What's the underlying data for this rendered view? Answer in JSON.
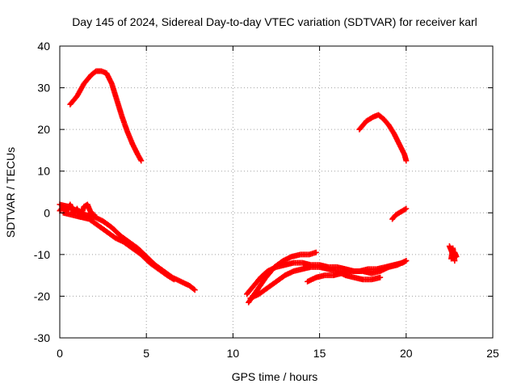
{
  "chart_data": {
    "type": "scatter",
    "title": "Day 145 of 2024, Sidereal Day-to-day VTEC variation (SDTVAR) for receiver karl",
    "xlabel": "GPS time / hours",
    "ylabel": "SDTVAR / TECUs",
    "xlim": [
      0,
      25
    ],
    "ylim": [
      -30,
      40
    ],
    "xticks": [
      0,
      5,
      10,
      15,
      20,
      25
    ],
    "yticks": [
      -30,
      -20,
      -10,
      0,
      10,
      20,
      30,
      40
    ],
    "xtick_labels": [
      "0",
      "5",
      "10",
      "15",
      "20",
      "25"
    ],
    "ytick_labels": [
      "-30",
      "-20",
      "-10",
      "0",
      "10",
      "20",
      "30",
      "40"
    ],
    "grid": true,
    "legend": "none",
    "marker": "plus",
    "color": "#ff0000",
    "series": [
      {
        "name": "arc-1",
        "x": [
          0.6,
          1.0,
          1.4,
          1.8,
          2.1,
          2.4,
          2.7,
          3.0,
          3.3,
          3.6,
          3.9,
          4.2,
          4.5,
          4.7
        ],
        "y": [
          26,
          28,
          31,
          33,
          34,
          34,
          33.5,
          31,
          27,
          23,
          19.5,
          16.5,
          14,
          12.5
        ]
      },
      {
        "name": "arc-2",
        "x": [
          17.3,
          17.7,
          18.1,
          18.4,
          18.7,
          19.0,
          19.3,
          19.6,
          19.9,
          20.0
        ],
        "y": [
          20,
          22,
          23,
          23.5,
          22.5,
          21,
          19,
          16.5,
          14,
          12.5
        ]
      },
      {
        "name": "arc-3",
        "x": [
          0.0,
          0.2,
          0.4,
          0.6,
          0.8,
          1.0,
          1.2,
          1.4,
          1.6,
          1.8,
          2.0
        ],
        "y": [
          0.5,
          1.5,
          0.5,
          2.0,
          0.0,
          1.0,
          -1.0,
          1.5,
          2.0,
          0.0,
          -0.5
        ]
      },
      {
        "name": "arc-4",
        "x": [
          0.0,
          0.5,
          1.0,
          1.5,
          2.0,
          2.5,
          3.0,
          3.5,
          4.0,
          4.5,
          5.0,
          5.5,
          6.0,
          6.5,
          7.0,
          7.5,
          7.8
        ],
        "y": [
          2.0,
          1.5,
          0.5,
          -0.5,
          -1.0,
          -2.0,
          -3.5,
          -5.5,
          -7.0,
          -8.5,
          -10.5,
          -12.5,
          -14.0,
          -15.5,
          -16.5,
          -17.5,
          -18.5
        ]
      },
      {
        "name": "arc-5",
        "x": [
          0.2,
          0.7,
          1.2,
          1.7,
          2.2,
          2.7,
          3.2,
          3.7,
          4.2,
          4.7,
          5.2,
          5.7,
          6.2,
          6.6
        ],
        "y": [
          0.0,
          -0.5,
          -1.0,
          -1.5,
          -3.0,
          -4.5,
          -6.0,
          -7.0,
          -8.5,
          -10.0,
          -12.0,
          -13.5,
          -15.0,
          -16.0
        ]
      },
      {
        "name": "arc-6",
        "x": [
          10.8,
          11.2,
          11.6,
          12.0,
          12.5,
          13.0,
          13.5,
          14.0,
          14.5,
          15.0,
          15.5,
          16.0,
          16.5,
          17.0,
          17.5,
          18.0,
          18.5,
          19.0,
          19.5,
          20.0
        ],
        "y": [
          -19.5,
          -17.5,
          -15.5,
          -14.0,
          -13.0,
          -12.5,
          -12.0,
          -12.0,
          -12.5,
          -12.5,
          -13.0,
          -13.0,
          -13.5,
          -14.0,
          -14.0,
          -14.5,
          -14.0,
          -13.0,
          -12.5,
          -11.5
        ]
      },
      {
        "name": "arc-7",
        "x": [
          10.9,
          11.4,
          11.9,
          12.4,
          12.9,
          13.4,
          13.9,
          14.4,
          14.8
        ],
        "y": [
          -21.5,
          -18.5,
          -15.5,
          -13.0,
          -11.5,
          -10.5,
          -10.0,
          -10.0,
          -9.5
        ]
      },
      {
        "name": "arc-8",
        "x": [
          11.0,
          11.5,
          12.0,
          12.5,
          13.0,
          13.5,
          14.0,
          14.5,
          15.0,
          15.5,
          16.0,
          16.5,
          17.0,
          17.5,
          18.0,
          18.5
        ],
        "y": [
          -20.5,
          -19.5,
          -18.0,
          -16.5,
          -15.0,
          -14.0,
          -13.5,
          -13.0,
          -13.0,
          -13.5,
          -14.0,
          -15.0,
          -15.5,
          -16.0,
          -16.0,
          -15.5
        ]
      },
      {
        "name": "arc-9",
        "x": [
          14.3,
          14.8,
          15.3,
          15.8,
          16.3,
          16.8,
          17.3,
          17.8,
          18.3,
          18.8,
          19.3,
          19.8,
          20.0
        ],
        "y": [
          -16.5,
          -15.5,
          -15.0,
          -15.0,
          -14.5,
          -14.0,
          -14.0,
          -13.5,
          -13.5,
          -13.0,
          -12.5,
          -12.0,
          -11.5
        ]
      },
      {
        "name": "arc-10",
        "x": [
          19.2,
          19.4,
          19.6,
          19.8,
          20.0
        ],
        "y": [
          -1.5,
          -0.5,
          0.0,
          0.5,
          1.0
        ]
      },
      {
        "name": "arc-11",
        "x": [
          22.5,
          22.6,
          22.7,
          22.8,
          22.9,
          22.6,
          22.7,
          22.8
        ],
        "y": [
          -8.0,
          -9.0,
          -10.0,
          -9.5,
          -10.5,
          -11.0,
          -8.5,
          -11.5
        ]
      }
    ]
  }
}
